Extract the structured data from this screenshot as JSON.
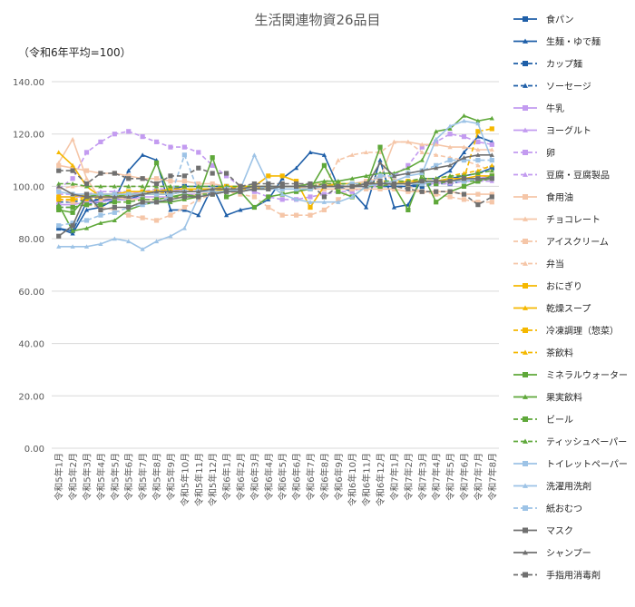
{
  "chart_data": {
    "type": "line",
    "title": "生活関連物資26品目",
    "subtitle": "（令和6年平均=100）",
    "xlabel": "",
    "ylabel": "",
    "ylim": [
      0,
      140
    ],
    "yticks": [
      "0.00",
      "20.00",
      "40.00",
      "60.00",
      "80.00",
      "100.00",
      "120.00",
      "140.00"
    ],
    "grid": true,
    "legend_position": "right",
    "categories": [
      "令和5年1月",
      "令和5年2月",
      "令和5年3月",
      "令和5年4月",
      "令和5年5月",
      "令和5年6月",
      "令和5年7月",
      "令和5年8月",
      "令和5年9月",
      "令和5年10月",
      "令和5年11月",
      "令和5年12月",
      "令和6年1月",
      "令和6年2月",
      "令和6年3月",
      "令和6年4月",
      "令和6年5月",
      "令和6年6月",
      "令和6年7月",
      "令和6年8月",
      "令和6年9月",
      "令和6年10月",
      "令和6年11月",
      "令和6年12月",
      "令和7年1月",
      "令和7年2月",
      "令和7年3月",
      "令和7年4月",
      "令和7年5月",
      "令和7年6月",
      "令和7年7月",
      "令和7年8月"
    ],
    "series": [
      {
        "name": "食パン",
        "color": "#1f5fa8",
        "dash": "solid",
        "marker": "square",
        "values": [
          84,
          83,
          94,
          95,
          95,
          95,
          97,
          98,
          99,
          100,
          100,
          100,
          100,
          100,
          100,
          100,
          100,
          100,
          100,
          100,
          100,
          100,
          100,
          100,
          100,
          100,
          101,
          102,
          103,
          104,
          105,
          107
        ]
      },
      {
        "name": "生麺・ゆで麺",
        "color": "#1f5fa8",
        "dash": "solid",
        "marker": "triangle",
        "values": [
          84,
          82,
          91,
          92,
          95,
          106,
          112,
          110,
          91,
          91,
          89,
          100,
          89,
          91,
          92,
          95,
          103,
          107,
          113,
          112,
          100,
          98,
          92,
          110,
          92,
          93,
          103,
          103,
          106,
          113,
          119,
          117
        ]
      },
      {
        "name": "カップ麺",
        "color": "#1f5fa8",
        "dash": "dash",
        "marker": "square",
        "values": [
          92,
          92,
          93,
          94,
          95,
          96,
          97,
          98,
          98,
          99,
          99,
          99,
          99,
          100,
          100,
          100,
          100,
          100,
          100,
          100,
          100,
          100,
          100,
          100,
          100,
          100,
          100,
          101,
          101,
          102,
          102,
          103
        ]
      },
      {
        "name": "ソーセージ",
        "color": "#1f5fa8",
        "dash": "dash",
        "marker": "triangle",
        "values": [
          94,
          94,
          95,
          95,
          96,
          96,
          97,
          97,
          97,
          98,
          98,
          98,
          99,
          99,
          99,
          99,
          100,
          100,
          100,
          100,
          100,
          100,
          100,
          101,
          101,
          101,
          101,
          102,
          102,
          102,
          103,
          103
        ]
      },
      {
        "name": "牛乳",
        "color": "#c39bf0",
        "dash": "solid",
        "marker": "square",
        "values": [
          93,
          93,
          94,
          94,
          95,
          95,
          96,
          96,
          96,
          97,
          97,
          98,
          99,
          99,
          100,
          100,
          100,
          100,
          100,
          100,
          100,
          100,
          101,
          101,
          101,
          101,
          101,
          102,
          102,
          103,
          103,
          104
        ]
      },
      {
        "name": "ヨーグルト",
        "color": "#c39bf0",
        "dash": "solid",
        "marker": "triangle",
        "values": [
          96,
          96,
          96,
          97,
          97,
          97,
          98,
          98,
          98,
          99,
          99,
          99,
          100,
          100,
          100,
          100,
          100,
          100,
          100,
          100,
          100,
          100,
          100,
          100,
          101,
          101,
          101,
          101,
          102,
          102,
          102,
          103
        ]
      },
      {
        "name": "卵",
        "color": "#c39bf0",
        "dash": "dash",
        "marker": "square",
        "values": [
          99,
          103,
          113,
          117,
          120,
          121,
          119,
          117,
          115,
          115,
          113,
          108,
          104,
          100,
          98,
          96,
          95,
          95,
          96,
          97,
          98,
          98,
          100,
          104,
          104,
          108,
          115,
          117,
          120,
          119,
          117,
          116
        ]
      },
      {
        "name": "豆腐・豆腐製品",
        "color": "#c39bf0",
        "dash": "dash",
        "marker": "triangle",
        "values": [
          97,
          97,
          97,
          98,
          98,
          98,
          98,
          99,
          99,
          99,
          99,
          99,
          99,
          99,
          100,
          100,
          100,
          100,
          100,
          100,
          100,
          100,
          100,
          100,
          101,
          101,
          101,
          101,
          101,
          102,
          102,
          102
        ]
      },
      {
        "name": "食用油",
        "color": "#f5c6a8",
        "dash": "solid",
        "marker": "square",
        "values": [
          108,
          107,
          106,
          105,
          105,
          104,
          103,
          103,
          102,
          102,
          101,
          101,
          100,
          100,
          100,
          100,
          100,
          100,
          99,
          99,
          99,
          99,
          99,
          99,
          99,
          98,
          98,
          98,
          98,
          97,
          97,
          97
        ]
      },
      {
        "name": "チョコレート",
        "color": "#f5c6a8",
        "dash": "solid",
        "marker": "triangle",
        "values": [
          109,
          118,
          103,
          95,
          96,
          95,
          95,
          95,
          96,
          96,
          97,
          98,
          99,
          99,
          99,
          100,
          100,
          100,
          101,
          101,
          101,
          101,
          102,
          103,
          117,
          117,
          116,
          116,
          115,
          115,
          114,
          114
        ]
      },
      {
        "name": "アイスクリーム",
        "color": "#f5c6a8",
        "dash": "dash",
        "marker": "square",
        "values": [
          95,
          94,
          93,
          92,
          91,
          89,
          88,
          87,
          89,
          92,
          95,
          97,
          98,
          97,
          96,
          92,
          89,
          89,
          89,
          91,
          95,
          99,
          102,
          104,
          103,
          100,
          98,
          97,
          96,
          95,
          94,
          94
        ]
      },
      {
        "name": "弁当",
        "color": "#f5c6a8",
        "dash": "dash",
        "marker": "triangle",
        "values": [
          99,
          100,
          100,
          100,
          100,
          100,
          100,
          100,
          100,
          100,
          100,
          100,
          100,
          100,
          100,
          100,
          100,
          100,
          100,
          100,
          110,
          112,
          113,
          113,
          117,
          117,
          113,
          112,
          111,
          110,
          108,
          106
        ]
      },
      {
        "name": "おにぎり",
        "color": "#f5b800",
        "dash": "solid",
        "marker": "square",
        "values": [
          96,
          96,
          97,
          97,
          97,
          98,
          98,
          98,
          99,
          99,
          99,
          99,
          100,
          100,
          100,
          104,
          104,
          102,
          92,
          100,
          101,
          101,
          101,
          101,
          101,
          102,
          102,
          102,
          103,
          103,
          104,
          104
        ]
      },
      {
        "name": "乾燥スープ",
        "color": "#f5b800",
        "dash": "solid",
        "marker": "triangle",
        "values": [
          113,
          108,
          100,
          96,
          96,
          96,
          97,
          97,
          97,
          98,
          98,
          98,
          99,
          99,
          99,
          100,
          100,
          100,
          100,
          100,
          100,
          100,
          101,
          101,
          101,
          101,
          102,
          102,
          102,
          103,
          103,
          103
        ]
      },
      {
        "name": "冷凍調理（惣菜）",
        "color": "#f5b800",
        "dash": "dash",
        "marker": "square",
        "values": [
          95,
          95,
          96,
          96,
          96,
          97,
          97,
          97,
          98,
          98,
          98,
          99,
          99,
          99,
          100,
          100,
          100,
          100,
          100,
          100,
          100,
          100,
          101,
          101,
          101,
          101,
          101,
          102,
          102,
          103,
          121,
          122
        ]
      },
      {
        "name": "茶飲料",
        "color": "#f5b800",
        "dash": "dash",
        "marker": "triangle",
        "values": [
          95,
          95,
          95,
          96,
          96,
          97,
          97,
          97,
          98,
          98,
          99,
          99,
          99,
          100,
          100,
          100,
          100,
          100,
          100,
          101,
          101,
          101,
          101,
          102,
          102,
          102,
          103,
          103,
          104,
          105,
          106,
          108
        ]
      },
      {
        "name": "ミネラルウォーター",
        "color": "#5fa83a",
        "dash": "solid",
        "marker": "square",
        "values": [
          91,
          90,
          96,
          97,
          96,
          97,
          97,
          109,
          96,
          97,
          96,
          111,
          96,
          98,
          92,
          96,
          97,
          98,
          99,
          108,
          98,
          96,
          100,
          115,
          100,
          91,
          105,
          94,
          98,
          100,
          102,
          104
        ]
      },
      {
        "name": "果実飲料",
        "color": "#5fa83a",
        "dash": "solid",
        "marker": "triangle",
        "values": [
          93,
          83,
          84,
          86,
          87,
          91,
          93,
          94,
          94,
          95,
          96,
          97,
          98,
          98,
          99,
          99,
          100,
          100,
          101,
          102,
          102,
          103,
          104,
          105,
          105,
          107,
          110,
          121,
          122,
          127,
          125,
          126
        ]
      },
      {
        "name": "ビール",
        "color": "#5fa83a",
        "dash": "dash",
        "marker": "square",
        "values": [
          92,
          92,
          93,
          93,
          94,
          94,
          95,
          95,
          96,
          96,
          97,
          97,
          98,
          99,
          99,
          100,
          100,
          100,
          100,
          100,
          100,
          100,
          100,
          100,
          101,
          101,
          101,
          101,
          102,
          102,
          102,
          103
        ]
      },
      {
        "name": "ティッシュペーパー",
        "color": "#5fa83a",
        "dash": "dash",
        "marker": "triangle",
        "values": [
          101,
          101,
          100,
          100,
          100,
          100,
          100,
          100,
          100,
          100,
          100,
          100,
          100,
          100,
          100,
          100,
          100,
          100,
          100,
          101,
          101,
          101,
          101,
          102,
          102,
          102,
          103,
          103,
          104,
          104,
          105,
          106
        ]
      },
      {
        "name": "トイレットペーパー",
        "color": "#9dc3e6",
        "dash": "solid",
        "marker": "square",
        "values": [
          98,
          97,
          97,
          97,
          97,
          97,
          97,
          97,
          97,
          98,
          98,
          98,
          98,
          98,
          99,
          99,
          99,
          99,
          99,
          100,
          100,
          100,
          100,
          101,
          101,
          101,
          101,
          102,
          102,
          102,
          103,
          103
        ]
      },
      {
        "name": "洗濯用洗剤",
        "color": "#9dc3e6",
        "dash": "solid",
        "marker": "triangle",
        "values": [
          77,
          77,
          77,
          78,
          80,
          79,
          76,
          79,
          81,
          84,
          96,
          97,
          98,
          99,
          112,
          101,
          97,
          95,
          94,
          94,
          94,
          96,
          100,
          101,
          102,
          104,
          105,
          118,
          123,
          125,
          124,
          110
        ]
      },
      {
        "name": "紙おむつ",
        "color": "#9dc3e6",
        "dash": "dash",
        "marker": "square",
        "values": [
          85,
          86,
          87,
          89,
          90,
          92,
          93,
          94,
          96,
          112,
          98,
          99,
          99,
          99,
          99,
          100,
          100,
          100,
          100,
          100,
          100,
          101,
          101,
          104,
          104,
          105,
          106,
          108,
          110,
          110,
          110,
          110
        ]
      },
      {
        "name": "マスク",
        "color": "#707070",
        "dash": "solid",
        "marker": "square",
        "values": [
          81,
          85,
          97,
          91,
          92,
          92,
          94,
          94,
          95,
          96,
          96,
          97,
          98,
          98,
          99,
          99,
          100,
          100,
          100,
          100,
          100,
          100,
          101,
          101,
          101,
          101,
          102,
          102,
          102,
          103,
          103,
          103
        ]
      },
      {
        "name": "シャンプー",
        "color": "#707070",
        "dash": "solid",
        "marker": "triangle",
        "values": [
          100,
          97,
          96,
          96,
          96,
          96,
          97,
          98,
          98,
          98,
          98,
          99,
          99,
          99,
          100,
          100,
          100,
          100,
          100,
          100,
          100,
          100,
          100,
          109,
          104,
          105,
          106,
          107,
          108,
          111,
          112,
          112
        ]
      },
      {
        "name": "手指用消毒剤",
        "color": "#707070",
        "dash": "dash",
        "marker": "square",
        "values": [
          106,
          106,
          101,
          105,
          105,
          103,
          103,
          101,
          104,
          104,
          107,
          105,
          105,
          100,
          101,
          101,
          101,
          101,
          101,
          96,
          100,
          100,
          101,
          102,
          100,
          99,
          98,
          98,
          98,
          97,
          93,
          96
        ]
      }
    ]
  }
}
